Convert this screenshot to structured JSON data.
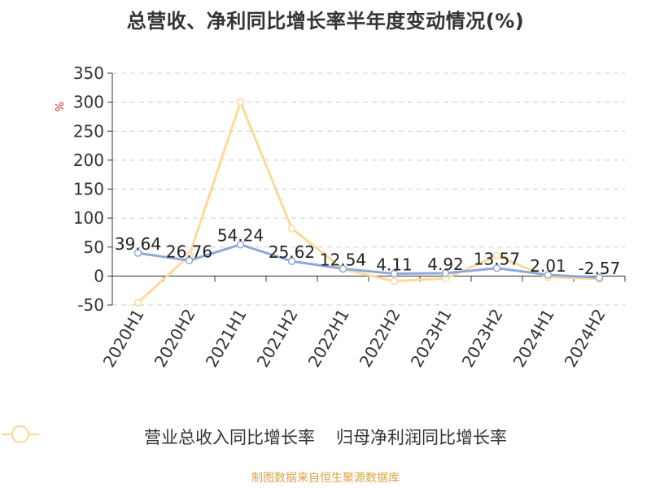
{
  "header": {
    "title": "总营收、净利同比增长率半年度变动情况(%)"
  },
  "footer": {
    "source": "制图数据来自恒生聚源数据库"
  },
  "chart_data": {
    "type": "line",
    "title": "总营收、净利同比增长率半年度变动情况(%)",
    "ylabel": "%",
    "xlabel": "",
    "ylim": [
      -50,
      350
    ],
    "yticks": [
      -50,
      0,
      50,
      100,
      150,
      200,
      250,
      300,
      350
    ],
    "grid": true,
    "legend": "bottom",
    "categories": [
      "2020H1",
      "2020H2",
      "2021H1",
      "2021H2",
      "2022H1",
      "2022H2",
      "2023H1",
      "2023H2",
      "2024H1",
      "2024H2"
    ],
    "series": [
      {
        "name": "营业总收入同比增长率",
        "color": "#8fa8d9",
        "values": [
          39.64,
          26.76,
          54.24,
          25.62,
          12.54,
          4.11,
          4.92,
          13.57,
          2.01,
          -2.57
        ],
        "labels": [
          "39.64",
          "26.76",
          "54.24",
          "25.62",
          "12.54",
          "4.11",
          "4.92",
          "13.57",
          "2.01",
          "-2.57"
        ]
      },
      {
        "name": "归母净利润同比增长率",
        "color": "#fdd99a",
        "values": [
          -46,
          35,
          300,
          82,
          12,
          -9,
          -4,
          35,
          -2,
          -5
        ]
      }
    ]
  }
}
